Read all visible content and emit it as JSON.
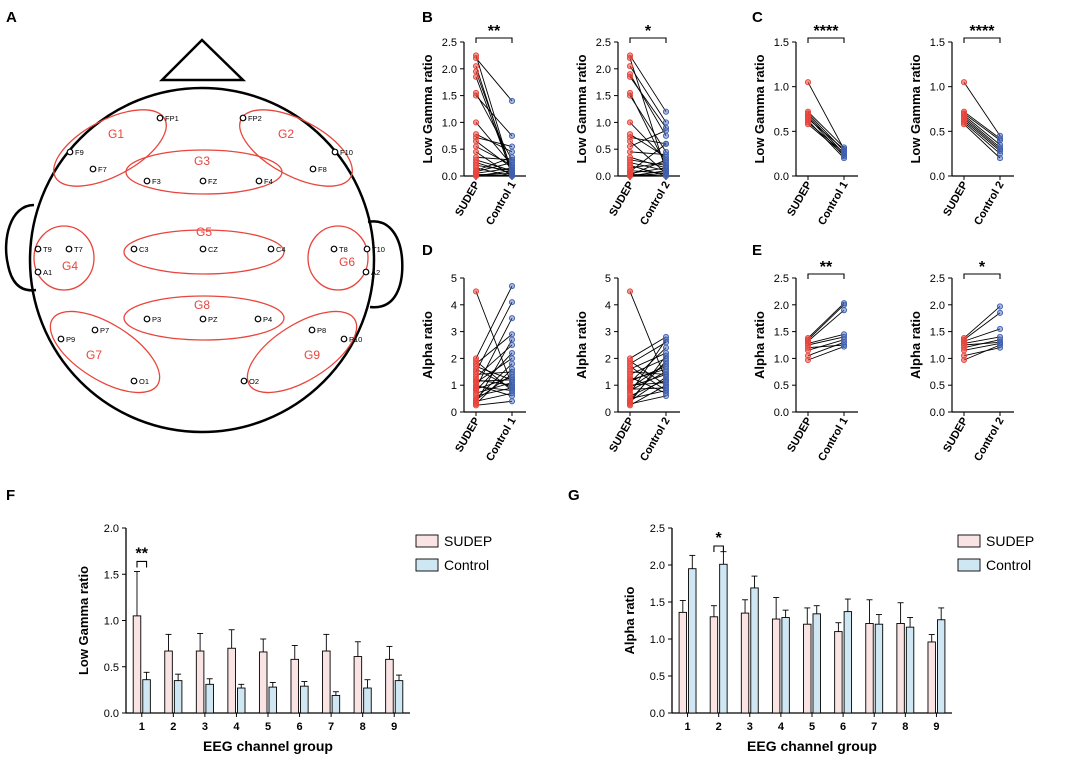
{
  "panel_letters": [
    "A",
    "B",
    "C",
    "D",
    "E",
    "F",
    "G"
  ],
  "colors": {
    "sudep_dot": "#e8453c",
    "control_dot": "#3f5fb0",
    "sudep_bar": "#f9e3e3",
    "control_bar": "#cfe7f3",
    "group_ellipse": "#e8453c"
  },
  "head_map": {
    "electrodes": [
      "FP1",
      "FP2",
      "F9",
      "F7",
      "F3",
      "FZ",
      "F4",
      "F8",
      "F10",
      "T9",
      "T7",
      "C3",
      "CZ",
      "C4",
      "T8",
      "T10",
      "A1",
      "A2",
      "P9",
      "P7",
      "P3",
      "PZ",
      "P4",
      "P8",
      "P10",
      "O1",
      "O2"
    ],
    "groups": [
      "G1",
      "G2",
      "G3",
      "G4",
      "G5",
      "G6",
      "G7",
      "G8",
      "G9"
    ]
  },
  "chart_data": [
    {
      "panel": "B",
      "type": "scatter",
      "subtype": "paired",
      "ylabel": "Low Gamma ratio",
      "categories": [
        "SUDEP",
        "Control 1"
      ],
      "ylim": [
        0,
        2.5
      ],
      "yticks": [
        "0.0",
        "0.5",
        "1.0",
        "1.5",
        "2.0",
        "2.5"
      ],
      "significance": "**",
      "pairs": [
        [
          2.25,
          0.05
        ],
        [
          2.2,
          1.4
        ],
        [
          2.05,
          0.0
        ],
        [
          1.95,
          0.1
        ],
        [
          1.85,
          0.05
        ],
        [
          1.55,
          0.3
        ],
        [
          1.5,
          0.75
        ],
        [
          1.0,
          0.2
        ],
        [
          0.78,
          0.45
        ],
        [
          0.72,
          0.55
        ],
        [
          0.65,
          0.15
        ],
        [
          0.55,
          0.2
        ],
        [
          0.45,
          0.0
        ],
        [
          0.35,
          0.3
        ],
        [
          0.3,
          0.1
        ],
        [
          0.25,
          0.05
        ],
        [
          0.2,
          0.1
        ],
        [
          0.15,
          0.0
        ],
        [
          0.1,
          0.35
        ],
        [
          0.08,
          0.25
        ],
        [
          0.05,
          0.15
        ],
        [
          0.03,
          0.0
        ],
        [
          0.02,
          0.05
        ],
        [
          0.0,
          0.1
        ],
        [
          0.0,
          0.02
        ]
      ]
    },
    {
      "panel": "B",
      "type": "scatter",
      "subtype": "paired",
      "ylabel": "Low Gamma ratio",
      "categories": [
        "SUDEP",
        "Control 2"
      ],
      "ylim": [
        0,
        2.5
      ],
      "yticks": [
        "0.0",
        "0.5",
        "1.0",
        "1.5",
        "2.0",
        "2.5"
      ],
      "significance": "*",
      "pairs": [
        [
          2.25,
          1.2
        ],
        [
          2.2,
          0.1
        ],
        [
          2.05,
          1.0
        ],
        [
          1.9,
          0.75
        ],
        [
          1.85,
          0.9
        ],
        [
          1.55,
          0.2
        ],
        [
          1.5,
          0.45
        ],
        [
          1.0,
          0.3
        ],
        [
          0.78,
          0.35
        ],
        [
          0.72,
          0.6
        ],
        [
          0.65,
          0.05
        ],
        [
          0.55,
          0.85
        ],
        [
          0.45,
          0.4
        ],
        [
          0.35,
          0.15
        ],
        [
          0.3,
          0.2
        ],
        [
          0.25,
          0.1
        ],
        [
          0.2,
          0.0
        ],
        [
          0.15,
          0.25
        ],
        [
          0.1,
          0.05
        ],
        [
          0.08,
          0.6
        ],
        [
          0.05,
          0.15
        ],
        [
          0.03,
          0.0
        ],
        [
          0.02,
          0.3
        ],
        [
          0.0,
          0.1
        ],
        [
          0.0,
          0.05
        ]
      ]
    },
    {
      "panel": "C",
      "type": "scatter",
      "subtype": "paired",
      "ylabel": "Low Gamma ratio",
      "categories": [
        "SUDEP",
        "Control 1"
      ],
      "ylim": [
        0,
        1.5
      ],
      "yticks": [
        "0.0",
        "0.5",
        "1.0",
        "1.5"
      ],
      "significance": "****",
      "pairs": [
        [
          1.05,
          0.3
        ],
        [
          0.72,
          0.32
        ],
        [
          0.7,
          0.28
        ],
        [
          0.68,
          0.25
        ],
        [
          0.66,
          0.22
        ],
        [
          0.64,
          0.3
        ],
        [
          0.62,
          0.2
        ],
        [
          0.6,
          0.26
        ],
        [
          0.58,
          0.24
        ]
      ]
    },
    {
      "panel": "C",
      "type": "scatter",
      "subtype": "paired",
      "ylabel": "Low Gamma ratio",
      "categories": [
        "SUDEP",
        "Control 2"
      ],
      "ylim": [
        0,
        1.5
      ],
      "yticks": [
        "0.0",
        "0.5",
        "1.0",
        "1.5"
      ],
      "significance": "****",
      "pairs": [
        [
          1.05,
          0.45
        ],
        [
          0.72,
          0.42
        ],
        [
          0.7,
          0.4
        ],
        [
          0.68,
          0.35
        ],
        [
          0.66,
          0.32
        ],
        [
          0.64,
          0.3
        ],
        [
          0.62,
          0.28
        ],
        [
          0.6,
          0.25
        ],
        [
          0.58,
          0.2
        ]
      ]
    },
    {
      "panel": "D",
      "type": "scatter",
      "subtype": "paired",
      "ylabel": "Alpha ratio",
      "categories": [
        "SUDEP",
        "Control 1"
      ],
      "ylim": [
        0,
        5
      ],
      "yticks": [
        "0",
        "1",
        "2",
        "3",
        "4",
        "5"
      ],
      "significance": "",
      "pairs": [
        [
          4.5,
          1.0
        ],
        [
          2.0,
          4.7
        ],
        [
          1.9,
          0.8
        ],
        [
          1.8,
          2.9
        ],
        [
          1.7,
          1.2
        ],
        [
          1.6,
          0.9
        ],
        [
          1.5,
          4.1
        ],
        [
          1.4,
          1.5
        ],
        [
          1.3,
          2.5
        ],
        [
          1.2,
          1.0
        ],
        [
          1.1,
          2.0
        ],
        [
          1.0,
          0.6
        ],
        [
          0.9,
          3.5
        ],
        [
          0.85,
          1.3
        ],
        [
          0.8,
          2.2
        ],
        [
          0.7,
          1.1
        ],
        [
          0.6,
          0.9
        ],
        [
          0.5,
          1.8
        ],
        [
          0.45,
          1.4
        ],
        [
          0.4,
          0.7
        ],
        [
          0.35,
          2.7
        ],
        [
          0.3,
          1.6
        ],
        [
          0.25,
          0.4
        ],
        [
          1.15,
          1.2
        ],
        [
          0.95,
          0.8
        ]
      ]
    },
    {
      "panel": "D",
      "type": "scatter",
      "subtype": "paired",
      "ylabel": "Alpha ratio",
      "categories": [
        "SUDEP",
        "Control 2"
      ],
      "ylim": [
        0,
        5
      ],
      "yticks": [
        "0",
        "1",
        "2",
        "3",
        "4",
        "5"
      ],
      "significance": "",
      "pairs": [
        [
          4.5,
          1.2
        ],
        [
          2.0,
          2.8
        ],
        [
          1.9,
          1.0
        ],
        [
          1.8,
          2.6
        ],
        [
          1.7,
          0.8
        ],
        [
          1.6,
          2.2
        ],
        [
          1.5,
          1.4
        ],
        [
          1.4,
          2.0
        ],
        [
          1.3,
          0.7
        ],
        [
          1.2,
          1.6
        ],
        [
          1.1,
          2.4
        ],
        [
          1.0,
          1.1
        ],
        [
          0.9,
          1.8
        ],
        [
          0.85,
          0.9
        ],
        [
          0.8,
          1.5
        ],
        [
          0.7,
          2.7
        ],
        [
          0.6,
          1.2
        ],
        [
          0.5,
          0.8
        ],
        [
          0.45,
          1.9
        ],
        [
          0.4,
          1.3
        ],
        [
          0.35,
          2.1
        ],
        [
          0.3,
          0.6
        ],
        [
          0.25,
          1.0
        ],
        [
          1.15,
          1.7
        ],
        [
          0.95,
          1.4
        ]
      ]
    },
    {
      "panel": "E",
      "type": "scatter",
      "subtype": "paired",
      "ylabel": "Alpha ratio",
      "categories": [
        "SUDEP",
        "Control 1"
      ],
      "ylim": [
        0,
        2.5
      ],
      "yticks": [
        "0.0",
        "0.5",
        "1.0",
        "1.5",
        "2.0",
        "2.5"
      ],
      "significance": "**",
      "pairs": [
        [
          1.38,
          2.03
        ],
        [
          1.35,
          2.0
        ],
        [
          1.32,
          1.9
        ],
        [
          1.28,
          1.45
        ],
        [
          1.25,
          1.4
        ],
        [
          1.2,
          1.25
        ],
        [
          1.15,
          1.35
        ],
        [
          1.05,
          1.3
        ],
        [
          0.97,
          1.22
        ]
      ]
    },
    {
      "panel": "E",
      "type": "scatter",
      "subtype": "paired",
      "ylabel": "Alpha ratio",
      "categories": [
        "SUDEP",
        "Control 2"
      ],
      "ylim": [
        0,
        2.5
      ],
      "yticks": [
        "0.0",
        "0.5",
        "1.0",
        "1.5",
        "2.0",
        "2.5"
      ],
      "significance": "*",
      "pairs": [
        [
          1.38,
          1.97
        ],
        [
          1.35,
          1.85
        ],
        [
          1.32,
          1.55
        ],
        [
          1.28,
          1.4
        ],
        [
          1.25,
          1.3
        ],
        [
          1.2,
          1.35
        ],
        [
          1.15,
          1.28
        ],
        [
          1.05,
          1.2
        ],
        [
          0.97,
          1.25
        ]
      ]
    },
    {
      "panel": "F",
      "type": "bar",
      "xlabel": "EEG channel group",
      "ylabel": "Low Gamma ratio",
      "categories": [
        "1",
        "2",
        "3",
        "4",
        "5",
        "6",
        "7",
        "8",
        "9"
      ],
      "ylim": [
        0,
        2.0
      ],
      "yticks": [
        "0.0",
        "0.5",
        "1.0",
        "1.5",
        "2.0"
      ],
      "series": [
        {
          "name": "SUDEP",
          "values": [
            1.05,
            0.67,
            0.67,
            0.7,
            0.66,
            0.58,
            0.67,
            0.61,
            0.58
          ],
          "errors": [
            0.48,
            0.18,
            0.19,
            0.2,
            0.14,
            0.15,
            0.18,
            0.16,
            0.14
          ]
        },
        {
          "name": "Control",
          "values": [
            0.36,
            0.35,
            0.31,
            0.27,
            0.28,
            0.29,
            0.19,
            0.27,
            0.35
          ],
          "errors": [
            0.08,
            0.07,
            0.06,
            0.04,
            0.05,
            0.05,
            0.04,
            0.09,
            0.06
          ]
        }
      ],
      "significance": [
        {
          "group": "1",
          "label": "**"
        }
      ]
    },
    {
      "panel": "G",
      "type": "bar",
      "xlabel": "EEG channel group",
      "ylabel": "Alpha ratio",
      "categories": [
        "1",
        "2",
        "3",
        "4",
        "5",
        "6",
        "7",
        "8",
        "9"
      ],
      "ylim": [
        0,
        2.5
      ],
      "yticks": [
        "0.0",
        "0.5",
        "1.0",
        "1.5",
        "2.0",
        "2.5"
      ],
      "series": [
        {
          "name": "SUDEP",
          "values": [
            1.36,
            1.3,
            1.35,
            1.27,
            1.2,
            1.1,
            1.21,
            1.21,
            0.96
          ],
          "errors": [
            0.16,
            0.15,
            0.18,
            0.29,
            0.22,
            0.12,
            0.32,
            0.28,
            0.1
          ]
        },
        {
          "name": "Control",
          "values": [
            1.95,
            2.01,
            1.69,
            1.29,
            1.34,
            1.37,
            1.2,
            1.16,
            1.26
          ],
          "errors": [
            0.18,
            0.17,
            0.16,
            0.1,
            0.11,
            0.17,
            0.13,
            0.13,
            0.16
          ]
        }
      ],
      "significance": [
        {
          "group": "2",
          "label": "*"
        }
      ]
    }
  ]
}
